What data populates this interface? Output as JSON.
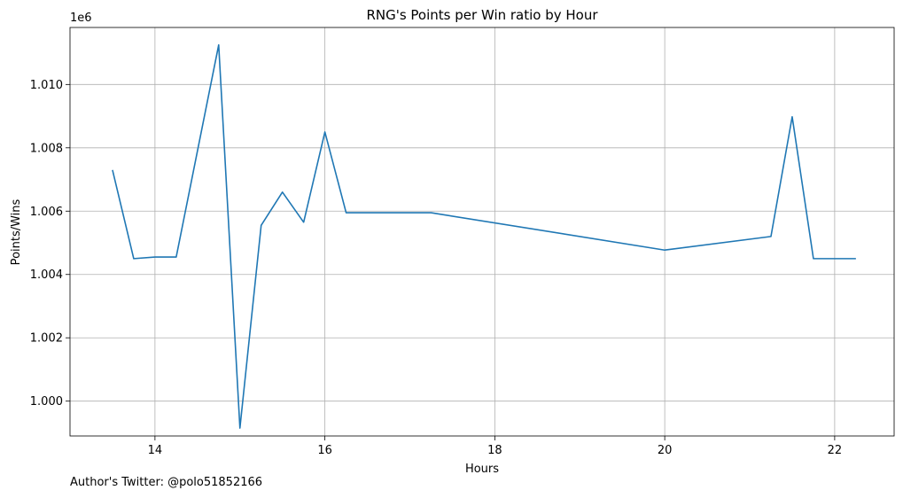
{
  "chart_data": {
    "type": "line",
    "title": "RNG's Points per Win ratio by Hour",
    "xlabel": "Hours",
    "ylabel": "Points/Wins",
    "y_offset_label": "1e6",
    "xlim": [
      13.0,
      22.7
    ],
    "ylim": [
      998.9,
      1011.8
    ],
    "y_scale_note": "values shown in thousands of the 1e6 offset",
    "x_ticks": [
      14,
      16,
      18,
      20,
      22
    ],
    "x_tick_labels": [
      "14",
      "16",
      "18",
      "20",
      "22"
    ],
    "y_ticks": [
      1000,
      1002,
      1004,
      1006,
      1008,
      1010
    ],
    "y_tick_labels": [
      "1.000",
      "1.002",
      "1.004",
      "1.006",
      "1.008",
      "1.010"
    ],
    "grid": true,
    "series": [
      {
        "color": "#1f77b4",
        "x": [
          13.5,
          13.75,
          14.0,
          14.25,
          14.75,
          15.0,
          15.25,
          15.5,
          15.75,
          16.0,
          16.25,
          17.25,
          20.0,
          21.25,
          21.5,
          21.75,
          22.25
        ],
        "y": [
          1007.3,
          1004.5,
          1004.55,
          1004.55,
          1011.25,
          999.15,
          1005.55,
          1006.6,
          1005.65,
          1008.5,
          1005.95,
          1005.95,
          1004.77,
          1005.2,
          1008.98,
          1004.5,
          1004.5
        ]
      }
    ]
  },
  "footer": {
    "text": "Author's Twitter: @polo51852166"
  }
}
